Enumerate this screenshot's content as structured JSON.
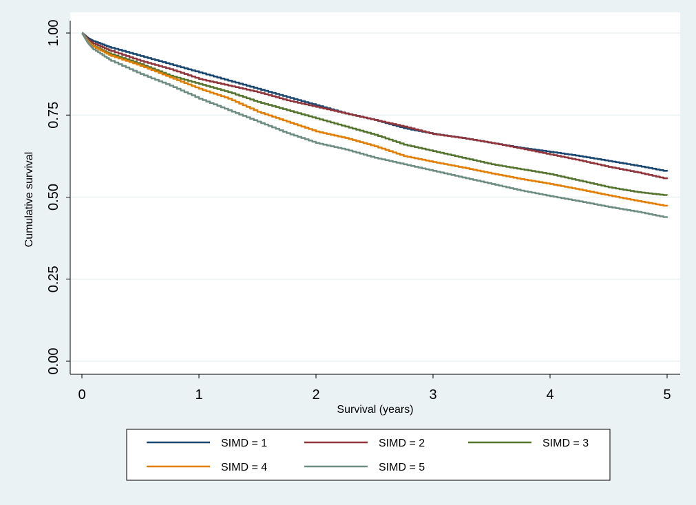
{
  "chart_data": {
    "type": "line",
    "step": true,
    "xlabel": "Survival (years)",
    "ylabel": "Cumulative survival",
    "xlim": [
      0,
      5
    ],
    "ylim": [
      0,
      1
    ],
    "x_ticks": [
      "0",
      "1",
      "2",
      "3",
      "4",
      "5"
    ],
    "y_ticks": [
      "0.00",
      "0.25",
      "0.50",
      "0.75",
      "1.00"
    ],
    "grid": "horizontal",
    "legend_position": "bottom",
    "series": [
      {
        "name": "SIMD = 1",
        "color": "#1a476f",
        "x": [
          0,
          0.05,
          0.1,
          0.25,
          0.5,
          0.75,
          1.0,
          1.25,
          1.5,
          1.75,
          2.0,
          2.25,
          2.5,
          2.75,
          3.0,
          3.25,
          3.5,
          3.75,
          4.0,
          4.25,
          4.5,
          4.75,
          5.0
        ],
        "y": [
          1.0,
          0.985,
          0.975,
          0.955,
          0.93,
          0.905,
          0.88,
          0.855,
          0.83,
          0.805,
          0.78,
          0.755,
          0.735,
          0.71,
          0.693,
          0.68,
          0.665,
          0.65,
          0.638,
          0.625,
          0.61,
          0.595,
          0.578
        ]
      },
      {
        "name": "SIMD = 2",
        "color": "#90353b",
        "x": [
          0,
          0.05,
          0.1,
          0.25,
          0.5,
          0.75,
          1.0,
          1.25,
          1.5,
          1.75,
          2.0,
          2.25,
          2.5,
          2.75,
          3.0,
          3.25,
          3.5,
          3.75,
          4.0,
          4.25,
          4.5,
          4.75,
          5.0
        ],
        "y": [
          1.0,
          0.98,
          0.968,
          0.945,
          0.915,
          0.89,
          0.86,
          0.84,
          0.82,
          0.795,
          0.775,
          0.755,
          0.735,
          0.715,
          0.692,
          0.68,
          0.665,
          0.648,
          0.63,
          0.612,
          0.592,
          0.575,
          0.555
        ]
      },
      {
        "name": "SIMD = 3",
        "color": "#55752f",
        "x": [
          0,
          0.05,
          0.1,
          0.25,
          0.5,
          0.75,
          1.0,
          1.25,
          1.5,
          1.75,
          2.0,
          2.25,
          2.5,
          2.75,
          3.0,
          3.25,
          3.5,
          3.75,
          4.0,
          4.25,
          4.5,
          4.75,
          5.0
        ],
        "y": [
          1.0,
          0.975,
          0.96,
          0.935,
          0.905,
          0.87,
          0.845,
          0.82,
          0.79,
          0.765,
          0.74,
          0.715,
          0.69,
          0.66,
          0.64,
          0.62,
          0.6,
          0.585,
          0.57,
          0.55,
          0.53,
          0.515,
          0.505
        ]
      },
      {
        "name": "SIMD = 4",
        "color": "#e37e00",
        "x": [
          0,
          0.05,
          0.1,
          0.25,
          0.5,
          0.75,
          1.0,
          1.25,
          1.5,
          1.75,
          2.0,
          2.25,
          2.5,
          2.75,
          3.0,
          3.25,
          3.5,
          3.75,
          4.0,
          4.25,
          4.5,
          4.75,
          5.0
        ],
        "y": [
          1.0,
          0.975,
          0.958,
          0.93,
          0.9,
          0.865,
          0.83,
          0.8,
          0.76,
          0.73,
          0.7,
          0.68,
          0.655,
          0.625,
          0.607,
          0.59,
          0.572,
          0.555,
          0.54,
          0.523,
          0.505,
          0.488,
          0.472
        ]
      },
      {
        "name": "SIMD = 5",
        "color": "#6e8e84",
        "x": [
          0,
          0.05,
          0.1,
          0.25,
          0.5,
          0.75,
          1.0,
          1.25,
          1.5,
          1.75,
          2.0,
          2.25,
          2.5,
          2.75,
          3.0,
          3.25,
          3.5,
          3.75,
          4.0,
          4.25,
          4.5,
          4.75,
          5.0
        ],
        "y": [
          1.0,
          0.97,
          0.95,
          0.915,
          0.875,
          0.84,
          0.8,
          0.765,
          0.73,
          0.695,
          0.665,
          0.645,
          0.62,
          0.6,
          0.58,
          0.56,
          0.54,
          0.52,
          0.503,
          0.487,
          0.47,
          0.455,
          0.437
        ]
      }
    ]
  }
}
